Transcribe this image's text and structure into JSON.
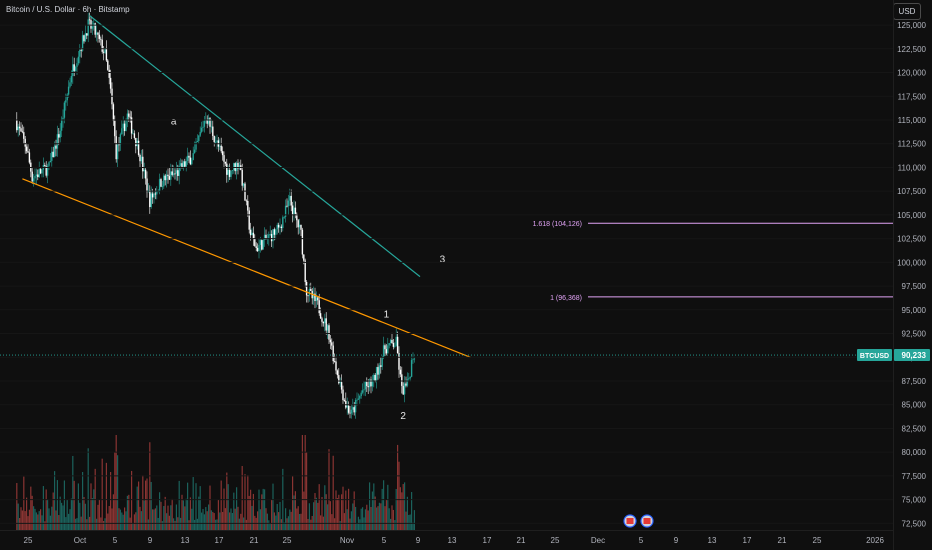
{
  "header": {
    "title": "Bitcoin / U.S. Dollar · 6h · Bitstamp",
    "currency_button": "USD"
  },
  "chart_data": {
    "type": "candlestick",
    "symbol": "BTCUSD",
    "last_price_label": "90,233",
    "last_price": 90233,
    "ylim": [
      71800,
      126800
    ],
    "y_ticks": [
      72500,
      75000,
      77500,
      80000,
      82500,
      85000,
      87500,
      90000,
      92500,
      95000,
      97500,
      100000,
      102500,
      105000,
      107500,
      110000,
      112500,
      115000,
      117500,
      120000,
      122500,
      125000
    ],
    "y_tick_labels": [
      "72,500",
      "75,000",
      "77,500",
      "80,000",
      "82,500",
      "85,000",
      "87,500",
      "90,000",
      "92,500",
      "95,000",
      "97,500",
      "100,000",
      "102,500",
      "105,000",
      "107,500",
      "110,000",
      "112,500",
      "115,000",
      "117,500",
      "120,000",
      "122,500",
      "125,000"
    ],
    "x_tick_labels": [
      "25",
      "Oct",
      "5",
      "9",
      "13",
      "17",
      "21",
      "25",
      "Nov",
      "5",
      "9",
      "13",
      "17",
      "21",
      "25",
      "Dec",
      "5",
      "9",
      "13",
      "17",
      "21",
      "25",
      "2026"
    ],
    "price_path": [
      {
        "day": "Sep 23",
        "price": 115000
      },
      {
        "day": "Sep 25",
        "price": 112000
      },
      {
        "day": "Sep 26",
        "price": 109000
      },
      {
        "day": "Sep 29",
        "price": 110000
      },
      {
        "day": "Oct 1",
        "price": 114000
      },
      {
        "day": "Oct 3",
        "price": 120000
      },
      {
        "day": "Oct 6",
        "price": 125000
      },
      {
        "day": "Oct 7",
        "price": 124500
      },
      {
        "day": "Oct 9",
        "price": 122000
      },
      {
        "day": "Oct 10",
        "price": 118000
      },
      {
        "day": "Oct 11",
        "price": 111500
      },
      {
        "day": "Oct 13",
        "price": 115500
      },
      {
        "day": "Oct 15",
        "price": 112000
      },
      {
        "day": "Oct 17",
        "price": 106500
      },
      {
        "day": "Oct 19",
        "price": 108500
      },
      {
        "day": "Oct 22",
        "price": 109500
      },
      {
        "day": "Oct 25",
        "price": 111500
      },
      {
        "day": "Oct 27",
        "price": 115500
      },
      {
        "day": "Oct 29",
        "price": 112500
      },
      {
        "day": "Oct 31",
        "price": 109500
      },
      {
        "day": "Nov 2",
        "price": 110500
      },
      {
        "day": "Nov 4",
        "price": 103000
      },
      {
        "day": "Nov 5",
        "price": 101500
      },
      {
        "day": "Nov 7",
        "price": 102500
      },
      {
        "day": "Nov 9",
        "price": 103500
      },
      {
        "day": "Nov 11",
        "price": 106500
      },
      {
        "day": "Nov 13",
        "price": 103000
      },
      {
        "day": "Nov 14",
        "price": 97000
      },
      {
        "day": "Nov 16",
        "price": 95500
      },
      {
        "day": "Nov 18",
        "price": 92500
      },
      {
        "day": "Nov 19",
        "price": 89500
      },
      {
        "day": "Nov 21",
        "price": 85000
      },
      {
        "day": "Nov 22",
        "price": 84000
      },
      {
        "day": "Nov 24",
        "price": 86500
      },
      {
        "day": "Nov 26",
        "price": 87500
      },
      {
        "day": "Nov 28",
        "price": 91000
      },
      {
        "day": "Nov 30",
        "price": 91500
      },
      {
        "day": "Dec 1",
        "price": 86500
      },
      {
        "day": "Dec 2",
        "price": 87000
      },
      {
        "day": "Dec 3",
        "price": 90233
      }
    ],
    "trendlines": [
      {
        "name": "upper-channel",
        "color": "#26a69a",
        "from": {
          "day": "Oct 6",
          "price": 126000
        },
        "to": {
          "day": "Dec 4",
          "price": 98500
        }
      },
      {
        "name": "lower-support",
        "color": "#ff9800",
        "from": {
          "day": "Sep 24",
          "price": 108800
        },
        "to": {
          "day": "Dec 13",
          "price": 90000
        }
      }
    ],
    "horizontal_levels": [
      {
        "label": "1.618 (104,126)",
        "price": 104126,
        "color": "#e1a3f5"
      },
      {
        "label": "1 (96,368)",
        "price": 96368,
        "color": "#e1a3f5"
      }
    ],
    "annotations": [
      {
        "text": "a",
        "day": "Oct 21",
        "price": 114500
      },
      {
        "text": "1",
        "day": "Nov 28",
        "price": 94200
      },
      {
        "text": "2",
        "day": "Dec 1",
        "price": 83500
      },
      {
        "text": "3",
        "day": "Dec 8",
        "price": 100000
      }
    ]
  }
}
